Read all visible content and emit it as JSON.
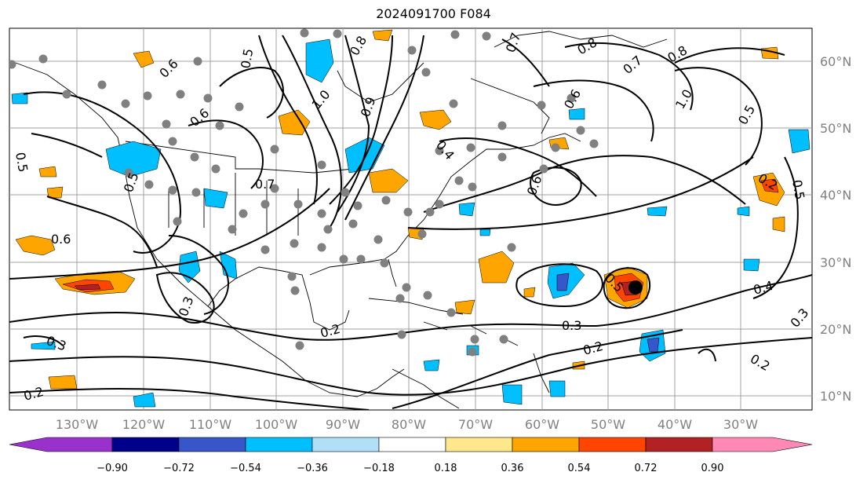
{
  "title": "2024091700 F084",
  "lon_labels": [
    "130°W",
    "120°W",
    "110°W",
    "100°W",
    "90°W",
    "80°W",
    "70°W",
    "60°W",
    "50°W",
    "40°W",
    "30°W"
  ],
  "lat_labels": [
    "60°N",
    "50°N",
    "40°N",
    "30°N",
    "20°N",
    "10°N"
  ],
  "colorbar": {
    "ticks": [
      "−0.90",
      "−0.72",
      "−0.54",
      "−0.36",
      "−0.18",
      "0.18",
      "0.36",
      "0.54",
      "0.72",
      "0.90"
    ],
    "colors": [
      "#9932cc",
      "#00008b",
      "#3656c9",
      "#00bfff",
      "#b0e0f8",
      "#ffffff",
      "#ffe88c",
      "#ffa500",
      "#ff4500",
      "#b22222",
      "#ff88b4"
    ]
  },
  "contour_labels": [
    "0.5",
    "0.6",
    "0.7",
    "0.8",
    "1.0",
    "0.9",
    "0.6",
    "0.5",
    "0.8",
    "0.7",
    "0.8",
    "1.0",
    "0.6",
    "0.7",
    "0.4",
    "0.5",
    "0.6",
    "0.3",
    "0.2",
    "0.2",
    "0.5",
    "0.3",
    "0.2",
    "0.4",
    "0.3",
    "0.2",
    "0.5",
    "0.6",
    "0.5",
    "0.3",
    "0.2"
  ],
  "colors": {
    "land_outline": "#000000",
    "grid": "#a0a0a0",
    "station": "#808080",
    "storm_center": "#000000"
  }
}
